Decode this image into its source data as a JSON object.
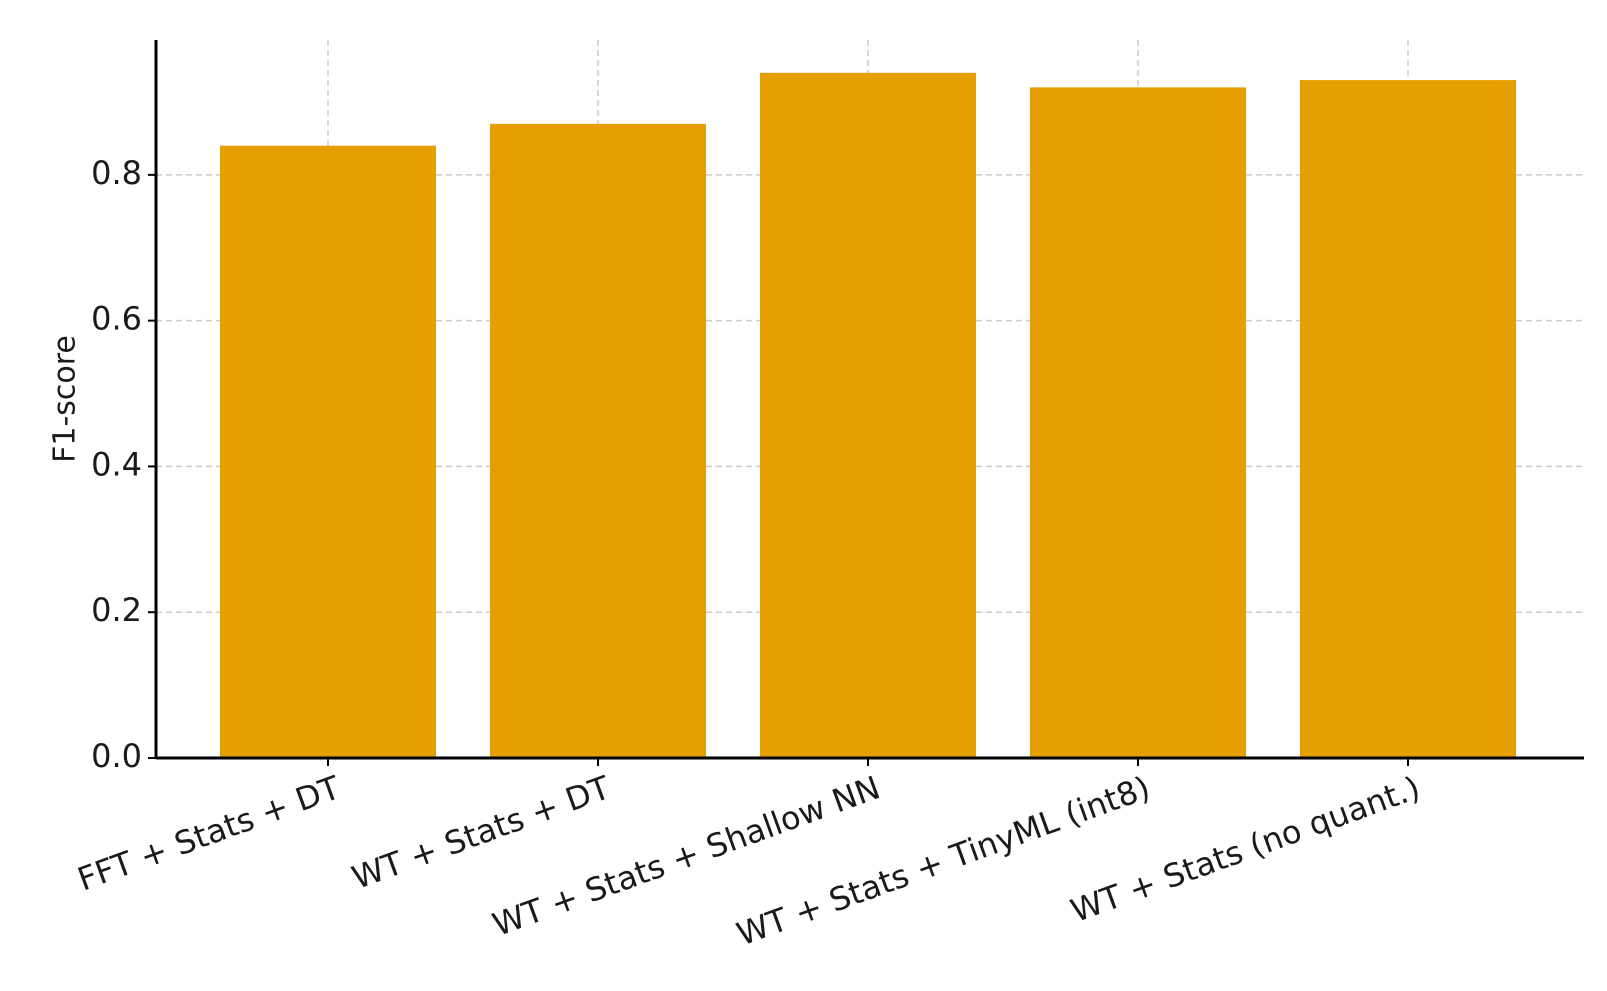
{
  "chart_data": {
    "type": "bar",
    "title": "",
    "xlabel": "",
    "ylabel": "F1-score",
    "categories": [
      "FFT + Stats + DT",
      "WT + Stats + DT",
      "WT + Stats + Shallow NN",
      "WT + Stats + TinyML (int8)",
      "WT + Stats (no quant.)"
    ],
    "values": [
      0.84,
      0.87,
      0.94,
      0.92,
      0.93
    ],
    "ylim": [
      0,
      0.985
    ],
    "yticks": [
      "0.0",
      "0.2",
      "0.4",
      "0.6",
      "0.8"
    ],
    "grid": true,
    "bar_color": "#E69F00",
    "grid_color": "#cccccc",
    "axis_color": "#000000"
  }
}
